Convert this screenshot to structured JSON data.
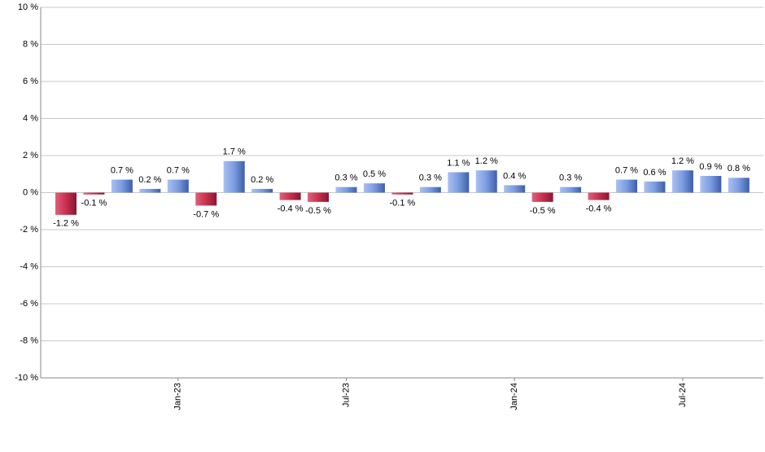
{
  "chart_data": {
    "type": "bar",
    "categories": [
      null,
      null,
      null,
      null,
      "Jan-23",
      null,
      null,
      null,
      null,
      null,
      "Jul-23",
      null,
      null,
      null,
      null,
      null,
      "Jan-24",
      null,
      null,
      null,
      null,
      null,
      "Jul-24",
      null,
      null
    ],
    "values": [
      -1.2,
      -0.1,
      0.7,
      0.2,
      0.7,
      -0.7,
      1.7,
      0.2,
      -0.4,
      -0.5,
      0.3,
      0.5,
      -0.1,
      0.3,
      1.1,
      1.2,
      0.4,
      -0.5,
      0.3,
      -0.4,
      0.7,
      0.6,
      1.2,
      0.9,
      0.8
    ],
    "value_labels": [
      "-1.2 %",
      "-0.1 %",
      "0.7 %",
      "0.2 %",
      "0.7 %",
      "-0.7 %",
      "1.7 %",
      "0.2 %",
      "-0.4 %",
      "-0.5 %",
      "0.3 %",
      "0.5 %",
      "-0.1 %",
      "0.3 %",
      "1.1 %",
      "1.2 %",
      "0.4 %",
      "-0.5 %",
      "0.3 %",
      "-0.4 %",
      "0.7 %",
      "0.6 %",
      "1.2 %",
      "0.9 %",
      "0.8 %"
    ],
    "positive_color": "#7b9ce2",
    "negative_color": "#c9304f",
    "ylim": [
      -10,
      10
    ],
    "yticks": [
      {
        "value": -10,
        "label": "-10 %"
      },
      {
        "value": -8,
        "label": "-8 %"
      },
      {
        "value": -6,
        "label": "-6 %"
      },
      {
        "value": -4,
        "label": "-4 %"
      },
      {
        "value": -2,
        "label": "-2 %"
      },
      {
        "value": 0,
        "label": "0 %"
      },
      {
        "value": 2,
        "label": "2 %"
      },
      {
        "value": 4,
        "label": "4 %"
      },
      {
        "value": 6,
        "label": "6 %"
      },
      {
        "value": 8,
        "label": "8 %"
      },
      {
        "value": 10,
        "label": "10 %"
      }
    ],
    "grid": true
  }
}
